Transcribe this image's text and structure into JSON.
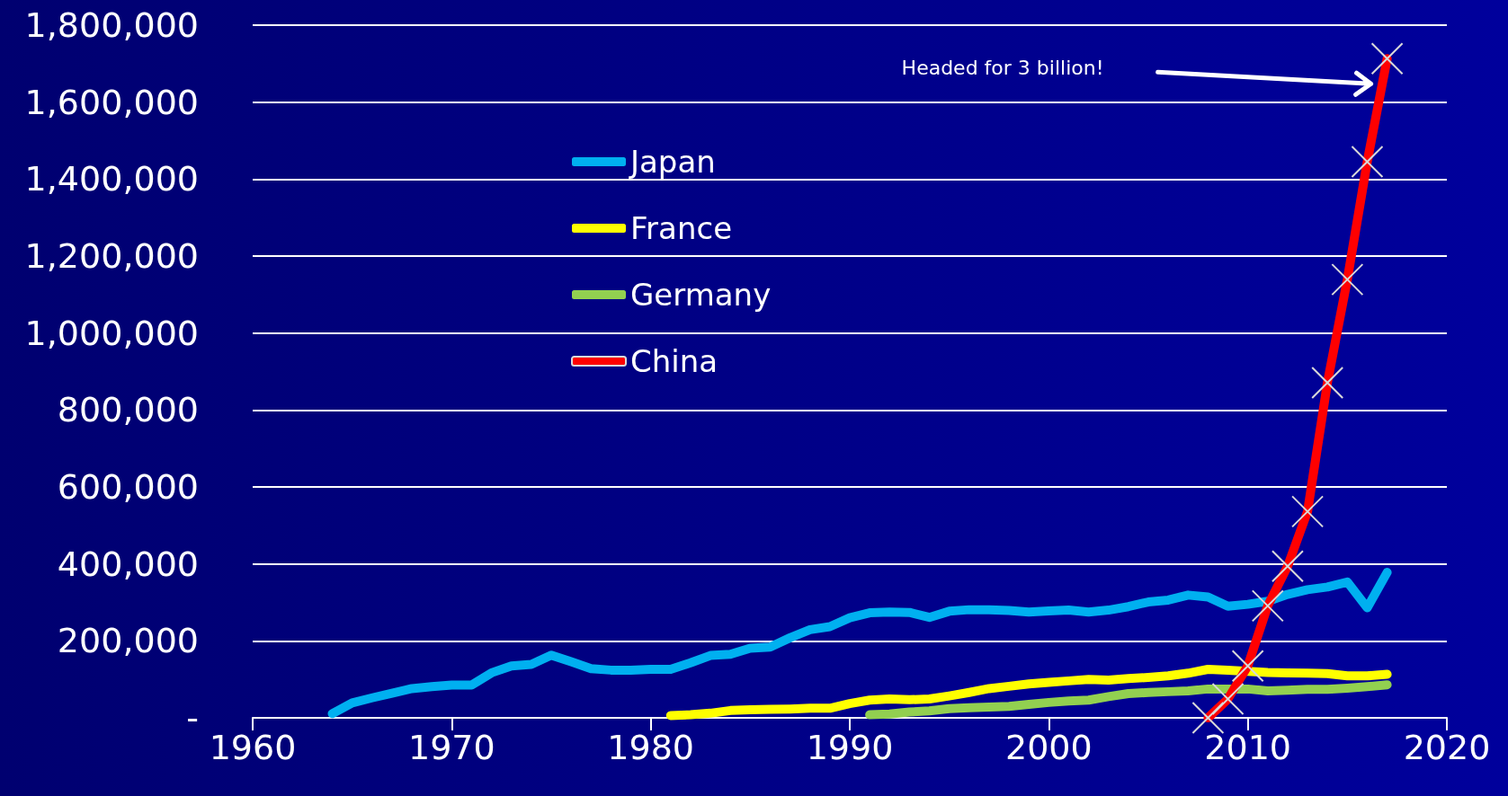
{
  "chart_data": {
    "type": "line",
    "annotations": [
      "Headed for 3 billion!"
    ],
    "xlim": [
      1960,
      2020
    ],
    "xticks": [
      1960,
      1970,
      1980,
      1990,
      2000,
      2010,
      2020
    ],
    "ylim": [
      0,
      1800000
    ],
    "yticks": [
      {
        "value": 0,
        "label": "-"
      },
      {
        "value": 200000,
        "label": "200,000"
      },
      {
        "value": 400000,
        "label": "400,000"
      },
      {
        "value": 600000,
        "label": "600,000"
      },
      {
        "value": 800000,
        "label": "800,000"
      },
      {
        "value": 1000000,
        "label": "1,000,000"
      },
      {
        "value": 1200000,
        "label": "1,200,000"
      },
      {
        "value": 1400000,
        "label": "1,400,000"
      },
      {
        "value": 1600000,
        "label": "1,600,000"
      },
      {
        "value": 1800000,
        "label": "1,800,000"
      }
    ],
    "grid": "y",
    "legend": "top left",
    "marker": "none",
    "line_style": "solid",
    "series": [
      {
        "name": "Japan",
        "color": "#00b0f0",
        "x": [
          1964,
          1965,
          1966,
          1967,
          1968,
          1969,
          1970,
          1971,
          1972,
          1973,
          1974,
          1975,
          1976,
          1977,
          1978,
          1979,
          1980,
          1981,
          1982,
          1983,
          1984,
          1985,
          1986,
          1987,
          1988,
          1989,
          1990,
          1991,
          1992,
          1993,
          1994,
          1995,
          1996,
          1997,
          1998,
          1999,
          2000,
          2001,
          2002,
          2003,
          2004,
          2005,
          2006,
          2007,
          2008,
          2009,
          2010,
          2011,
          2012,
          2013,
          2014,
          2015,
          2016,
          2017
        ],
        "values": [
          11000,
          39000,
          52000,
          64000,
          76000,
          81000,
          85000,
          85000,
          117000,
          135000,
          139000,
          163000,
          146000,
          128000,
          124000,
          124000,
          126000,
          126000,
          143000,
          162000,
          165000,
          181000,
          184000,
          208000,
          229000,
          237000,
          260000,
          273000,
          275000,
          274000,
          261000,
          277000,
          281000,
          281000,
          279000,
          275000,
          278000,
          280000,
          275000,
          280000,
          289000,
          301000,
          306000,
          319000,
          314000,
          290000,
          295000,
          303000,
          321000,
          333000,
          340000,
          353000,
          286000,
          378000
        ]
      },
      {
        "name": "France",
        "color": "#ffff00",
        "x": [
          1981,
          1982,
          1983,
          1984,
          1985,
          1986,
          1987,
          1988,
          1989,
          1990,
          1991,
          1992,
          1993,
          1994,
          1995,
          1996,
          1997,
          1998,
          1999,
          2000,
          2001,
          2002,
          2003,
          2004,
          2005,
          2006,
          2007,
          2008,
          2009,
          2010,
          2011,
          2012,
          2013,
          2014,
          2015,
          2016,
          2017
        ],
        "values": [
          6000,
          8000,
          12000,
          19000,
          21000,
          22000,
          23000,
          25000,
          25000,
          37000,
          46000,
          49000,
          47000,
          49000,
          57000,
          66000,
          76000,
          82000,
          88000,
          92000,
          96000,
          100000,
          98000,
          102000,
          105000,
          109000,
          116000,
          126000,
          124000,
          121000,
          118000,
          117000,
          116000,
          115000,
          109000,
          109000,
          113000
        ]
      },
      {
        "name": "Germany",
        "color": "#92d050",
        "x": [
          1991,
          1992,
          1993,
          1994,
          1995,
          1996,
          1997,
          1998,
          1999,
          2000,
          2001,
          2002,
          2003,
          2004,
          2005,
          2006,
          2007,
          2008,
          2009,
          2010,
          2011,
          2012,
          2013,
          2014,
          2015,
          2016,
          2017
        ],
        "values": [
          8000,
          10000,
          15000,
          18000,
          24000,
          26000,
          28000,
          30000,
          35000,
          40000,
          44000,
          46000,
          55000,
          63000,
          66000,
          68000,
          70000,
          75000,
          75000,
          75000,
          70000,
          72000,
          74000,
          74000,
          77000,
          81000,
          86000
        ]
      },
      {
        "name": "China",
        "color": "#ff0000",
        "marker": "cross",
        "x": [
          2008,
          2009,
          2010,
          2011,
          2012,
          2013,
          2014,
          2015,
          2016,
          2017
        ],
        "values": [
          0,
          49000,
          135000,
          291000,
          394000,
          536000,
          871000,
          1139000,
          1445000,
          1713000
        ]
      }
    ]
  }
}
